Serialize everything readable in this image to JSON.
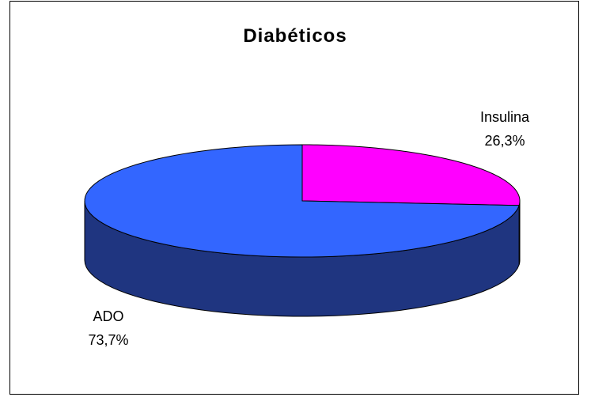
{
  "chart_data": {
    "type": "pie",
    "title": "Diabéticos",
    "style": "3d",
    "slices": [
      {
        "label": "Insulina",
        "value": 26.3,
        "value_text": "26,3%",
        "color": "#FF00FF",
        "side_color": "#990099"
      },
      {
        "label": "ADO",
        "value": 73.7,
        "value_text": "73,7%",
        "color": "#3366FF",
        "side_color": "#1F3580"
      }
    ]
  }
}
